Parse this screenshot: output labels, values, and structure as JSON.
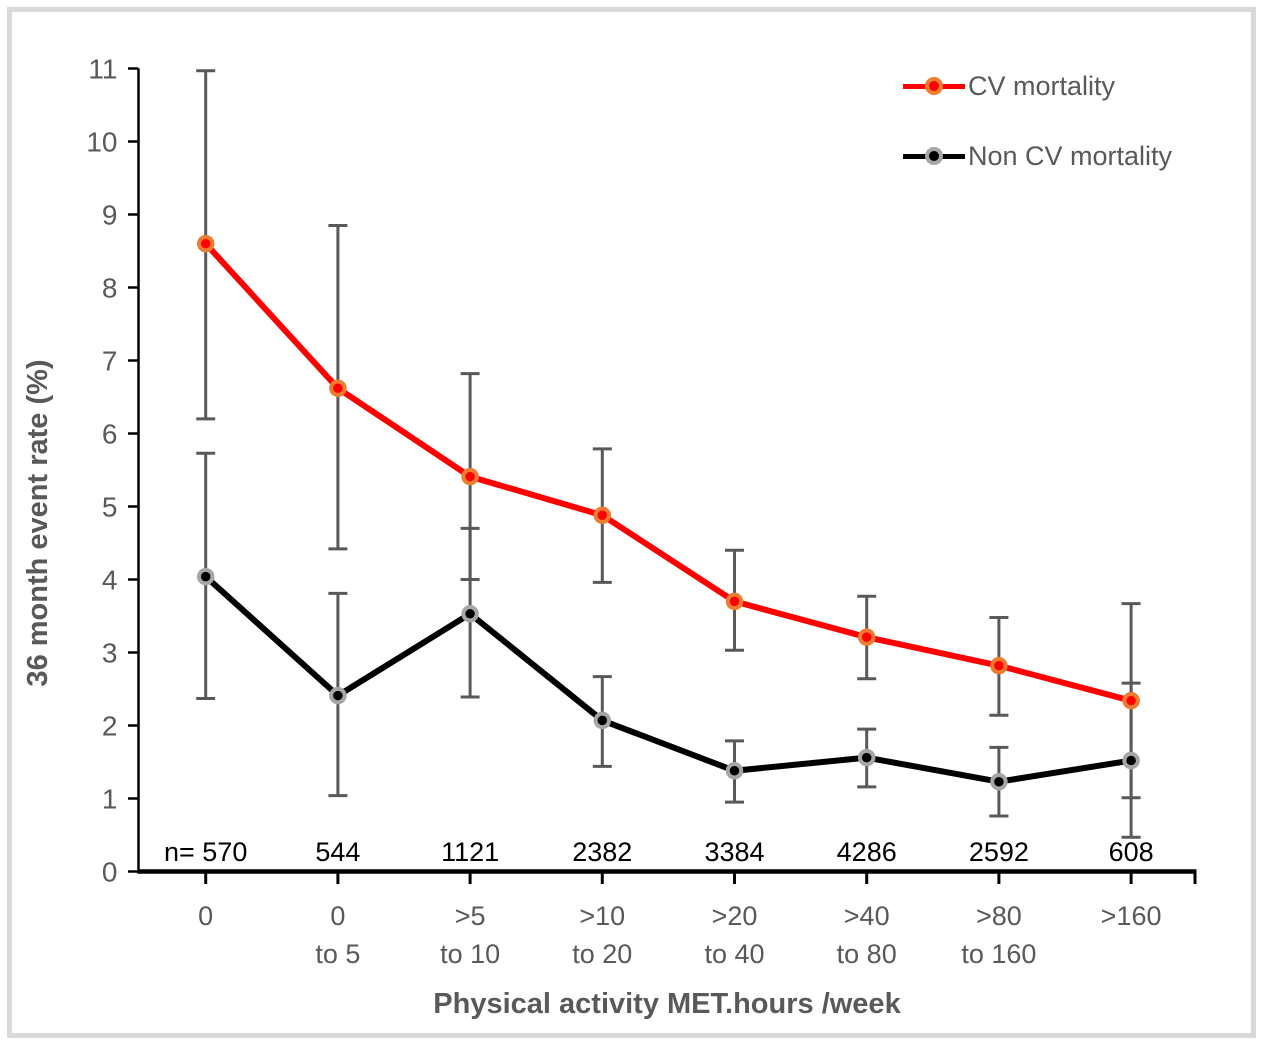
{
  "figure": {
    "background": "#FFFFFF",
    "border_color": "#D9D9D9",
    "axis_color": "#000000",
    "text_color": "#595959"
  },
  "chart_data": {
    "type": "line",
    "title": "",
    "xlabel": "Physical activity MET.hours /week",
    "ylabel": "36 month event rate (%)",
    "ylim": [
      0,
      11
    ],
    "y_ticks": [
      0,
      1,
      2,
      3,
      4,
      5,
      6,
      7,
      8,
      9,
      10,
      11
    ],
    "grid": false,
    "legend_position": "top-right",
    "error_bar_color": "#595959",
    "categories": [
      [
        "0",
        ""
      ],
      [
        "0",
        "to 5"
      ],
      [
        ">5",
        "to 10"
      ],
      [
        ">10",
        "to 20"
      ],
      [
        ">20",
        "to 40"
      ],
      [
        ">40",
        "to 80"
      ],
      [
        ">80",
        "to 160"
      ],
      [
        ">160",
        ""
      ]
    ],
    "n_labels": [
      "n= 570",
      "544",
      "1121",
      "2382",
      "3384",
      "4286",
      "2592",
      "608"
    ],
    "series": [
      {
        "name": "CV mortality",
        "color": "#FF0000",
        "marker_ring": "#ED7D31",
        "values": [
          8.6,
          6.62,
          5.41,
          4.88,
          3.7,
          3.21,
          2.82,
          2.34
        ],
        "err_low": [
          6.2,
          4.42,
          4.0,
          3.96,
          3.03,
          2.64,
          2.14,
          1.01
        ],
        "err_high": [
          10.97,
          8.85,
          6.82,
          5.79,
          4.4,
          3.77,
          3.48,
          3.67
        ]
      },
      {
        "name": "Non CV mortality",
        "color": "#000000",
        "marker_ring": "#A6A6A6",
        "values": [
          4.04,
          2.41,
          3.53,
          2.07,
          1.38,
          1.56,
          1.23,
          1.52
        ],
        "err_low": [
          2.37,
          1.04,
          2.39,
          1.44,
          0.95,
          1.16,
          0.76,
          0.47
        ],
        "err_high": [
          5.73,
          3.81,
          4.7,
          2.67,
          1.79,
          1.95,
          1.7,
          2.58
        ]
      }
    ]
  }
}
